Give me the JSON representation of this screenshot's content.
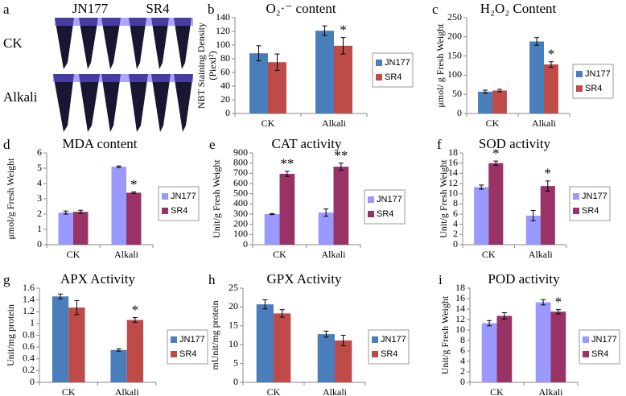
{
  "photo_panel": {
    "panel": "a",
    "columns": [
      "JN177",
      "SR4"
    ],
    "rows": [
      "CK",
      "Alkali"
    ]
  },
  "chart_data": [
    {
      "type": "bar",
      "panel": "b",
      "title": "O₂·⁻ content",
      "y_label": [
        "NBT Staining Density",
        "(Piexl²)"
      ],
      "categories": [
        "CK",
        "Alkali"
      ],
      "ylim": [
        0,
        140
      ],
      "yticks": [
        0,
        20,
        40,
        60,
        80,
        100,
        120,
        140
      ],
      "series": [
        {
          "name": "JN177",
          "color": "#4a7ebb",
          "values": [
            88,
            121
          ],
          "errors": [
            11,
            7
          ],
          "significance": [
            null,
            null
          ]
        },
        {
          "name": "SR4",
          "color": "#be4b48",
          "values": [
            75,
            99
          ],
          "errors": [
            12,
            12
          ],
          "significance": [
            null,
            "*"
          ]
        }
      ]
    },
    {
      "type": "bar",
      "panel": "c",
      "title": "H₂O₂ Content",
      "y_label": [
        "μmol/ g Fresh Weight"
      ],
      "categories": [
        "CK",
        "Alkali"
      ],
      "ylim": [
        0,
        250
      ],
      "yticks": [
        0,
        50,
        100,
        150,
        200,
        250
      ],
      "series": [
        {
          "name": "JN177",
          "color": "#4a7ebb",
          "values": [
            57,
            188
          ],
          "errors": [
            4,
            10
          ],
          "significance": [
            null,
            null
          ]
        },
        {
          "name": "SR4",
          "color": "#be4b48",
          "values": [
            60,
            128
          ],
          "errors": [
            3,
            7
          ],
          "significance": [
            null,
            "*"
          ]
        }
      ]
    },
    {
      "type": "bar",
      "panel": "d",
      "title": "MDA content",
      "y_label": [
        "μmol/g Fresh Weight"
      ],
      "categories": [
        "CK",
        "Alkali"
      ],
      "ylim": [
        0,
        6
      ],
      "yticks": [
        0,
        1,
        2,
        3,
        4,
        5,
        6
      ],
      "series": [
        {
          "name": "JN177",
          "color": "#9999ff",
          "values": [
            2.1,
            5.1
          ],
          "errors": [
            0.1,
            0.05
          ],
          "significance": [
            null,
            null
          ]
        },
        {
          "name": "SR4",
          "color": "#993366",
          "values": [
            2.15,
            3.4
          ],
          "errors": [
            0.1,
            0.05
          ],
          "significance": [
            null,
            "*"
          ]
        }
      ]
    },
    {
      "type": "bar",
      "panel": "e",
      "title": "CAT activity",
      "y_label": [
        "Unit/g Fresh Weight"
      ],
      "categories": [
        "CK",
        "Alkali"
      ],
      "ylim": [
        0,
        900
      ],
      "yticks": [
        0,
        100,
        200,
        300,
        400,
        500,
        600,
        700,
        800,
        900
      ],
      "series": [
        {
          "name": "JN177",
          "color": "#9999ff",
          "values": [
            300,
            315
          ],
          "errors": [
            5,
            35
          ],
          "significance": [
            null,
            null
          ]
        },
        {
          "name": "SR4",
          "color": "#993366",
          "values": [
            695,
            765
          ],
          "errors": [
            25,
            35
          ],
          "significance": [
            "**",
            "**"
          ]
        }
      ]
    },
    {
      "type": "bar",
      "panel": "f",
      "title": "SOD activity",
      "y_label": [
        "Unit/g Fresh Weight"
      ],
      "categories": [
        "CK",
        "Alkali"
      ],
      "ylim": [
        0,
        18
      ],
      "yticks": [
        0,
        2,
        4,
        6,
        8,
        10,
        12,
        14,
        16,
        18
      ],
      "series": [
        {
          "name": "JN177",
          "color": "#9999ff",
          "values": [
            11.3,
            5.7
          ],
          "errors": [
            0.4,
            1
          ],
          "significance": [
            null,
            null
          ]
        },
        {
          "name": "SR4",
          "color": "#993366",
          "values": [
            16,
            11.5
          ],
          "errors": [
            0.4,
            1
          ],
          "significance": [
            "*",
            "*"
          ]
        }
      ]
    },
    {
      "type": "bar",
      "panel": "g",
      "title": "APX Activity",
      "y_label": [
        "Unit/mg protein"
      ],
      "categories": [
        "CK",
        "Alkali"
      ],
      "ylim": [
        0,
        1.6
      ],
      "yticks": [
        0,
        0.2,
        0.4,
        0.6,
        0.8,
        1,
        1.2,
        1.4,
        1.6
      ],
      "series": [
        {
          "name": "JN177",
          "color": "#4a7ebb",
          "values": [
            1.46,
            0.55
          ],
          "errors": [
            0.04,
            0.02
          ],
          "significance": [
            null,
            null
          ]
        },
        {
          "name": "SR4",
          "color": "#be4b48",
          "values": [
            1.27,
            1.06
          ],
          "errors": [
            0.12,
            0.04
          ],
          "significance": [
            null,
            "*"
          ]
        }
      ]
    },
    {
      "type": "bar",
      "panel": "h",
      "title": "GPX Activity",
      "y_label": [
        "mUnit/mg protein"
      ],
      "categories": [
        "CK",
        "Alkali"
      ],
      "ylim": [
        0,
        25
      ],
      "yticks": [
        0,
        5,
        10,
        15,
        20,
        25
      ],
      "series": [
        {
          "name": "JN177",
          "color": "#4a7ebb",
          "values": [
            20.7,
            12.8
          ],
          "errors": [
            1.2,
            0.8
          ],
          "significance": [
            null,
            null
          ]
        },
        {
          "name": "SR4",
          "color": "#be4b48",
          "values": [
            18.3,
            11.1
          ],
          "errors": [
            1,
            1.4
          ],
          "significance": [
            null,
            null
          ]
        }
      ]
    },
    {
      "type": "bar",
      "panel": "i",
      "title": "POD activity",
      "y_label": [
        "Unit/g Fresh Weight"
      ],
      "categories": [
        "CK",
        "Alkali"
      ],
      "ylim": [
        0,
        18
      ],
      "yticks": [
        0,
        2,
        4,
        6,
        8,
        10,
        12,
        14,
        16,
        18
      ],
      "series": [
        {
          "name": "JN177",
          "color": "#9999ff",
          "values": [
            11.3,
            15.3
          ],
          "errors": [
            0.5,
            0.5
          ],
          "significance": [
            null,
            null
          ]
        },
        {
          "name": "SR4",
          "color": "#993366",
          "values": [
            12.7,
            13.5
          ],
          "errors": [
            0.6,
            0.4
          ],
          "significance": [
            null,
            "*"
          ]
        }
      ]
    }
  ]
}
